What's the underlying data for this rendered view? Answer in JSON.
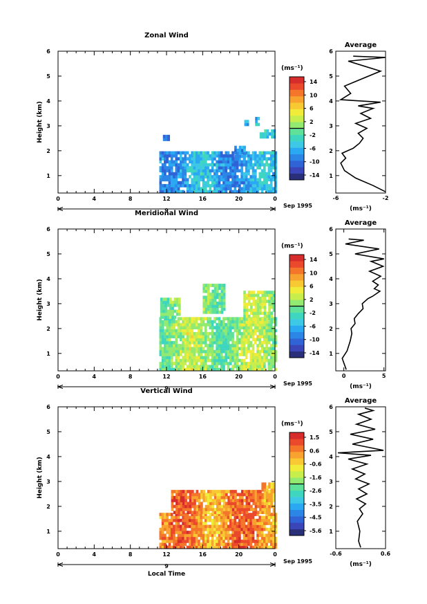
{
  "chart_data": [
    {
      "type": "heatmap",
      "title": "Zonal Wind",
      "ylabel": "Height (km)",
      "x_ticks": [
        "0",
        "4",
        "8",
        "12",
        "16",
        "20",
        "0"
      ],
      "y_ticks": [
        "1",
        "2",
        "3",
        "4",
        "5",
        "6"
      ],
      "date_day": "9",
      "date_month": "Sep 1995",
      "xlim": [
        0,
        24
      ],
      "ylim": [
        0.3,
        6
      ],
      "colorbar": {
        "unit": "(ms⁻¹)",
        "tick_labels": [
          "14",
          "10",
          "6",
          "2",
          "-2",
          "-6",
          "-10",
          "-14"
        ],
        "range": [
          -16,
          16
        ],
        "colors": [
          "#2a2f7a",
          "#3a46b8",
          "#2f63d6",
          "#2c86e6",
          "#2aa9f2",
          "#3dc8e6",
          "#3fd6c0",
          "#5fe19a",
          "#93ea70",
          "#c7ee4c",
          "#f1ec3a",
          "#f8c933",
          "#f8a22f",
          "#f3762b",
          "#ea4a2b",
          "#d72c2c"
        ]
      },
      "coverage": [
        {
          "x": [
            11.2,
            24.0
          ],
          "y": [
            0.3,
            1.9
          ]
        },
        {
          "x": [
            11.6,
            12.3
          ],
          "y": [
            2.4,
            2.6
          ]
        },
        {
          "x": [
            19.5,
            20.6
          ],
          "y": [
            1.6,
            2.2
          ]
        },
        {
          "x": [
            22.3,
            24.0
          ],
          "y": [
            2.5,
            2.8
          ]
        },
        {
          "x": [
            21.8,
            22.1
          ],
          "y": [
            3.0,
            3.3
          ]
        },
        {
          "x": [
            20.6,
            20.9
          ],
          "y": [
            3.0,
            3.2
          ]
        }
      ],
      "field_value_range": [
        -12,
        -2
      ],
      "profile": {
        "title": "Average",
        "xlabel": "(ms⁻¹)",
        "x_ticks": [
          "-6",
          "-2"
        ],
        "y_ticks": [
          "1",
          "2",
          "3",
          "4",
          "5",
          "6"
        ],
        "xlim": [
          -6,
          -2
        ],
        "ylim": [
          0.3,
          6
        ],
        "x": [
          -2.0,
          -3.0,
          -4.4,
          -5.3,
          -5.6,
          -5.2,
          -5.5,
          -4.6,
          -4.1,
          -3.8,
          -4.2,
          -3.5,
          -4.4,
          -3.2,
          -4.0,
          -3.0,
          -4.2,
          -2.4,
          -5.6,
          -4.8,
          -5.3,
          -2.4,
          -5.0,
          -2.0,
          -4.6
        ],
        "y": [
          0.35,
          0.6,
          0.9,
          1.2,
          1.5,
          1.7,
          1.9,
          2.1,
          2.3,
          2.5,
          2.7,
          2.9,
          3.1,
          3.3,
          3.5,
          3.7,
          3.8,
          3.95,
          4.05,
          4.3,
          4.6,
          5.2,
          5.6,
          5.75,
          5.8
        ]
      }
    },
    {
      "type": "heatmap",
      "title": "Meridional Wind",
      "ylabel": "Height (km)",
      "x_ticks": [
        "0",
        "4",
        "8",
        "12",
        "16",
        "20",
        "0"
      ],
      "y_ticks": [
        "1",
        "2",
        "3",
        "4",
        "5",
        "6"
      ],
      "date_day": "9",
      "date_month": "Sep 1995",
      "xlim": [
        0,
        24
      ],
      "ylim": [
        0.3,
        6
      ],
      "colorbar": {
        "unit": "(ms⁻¹)",
        "tick_labels": [
          "14",
          "10",
          "6",
          "2",
          "-2",
          "-6",
          "-10",
          "-14"
        ],
        "range": [
          -16,
          16
        ],
        "colors": [
          "#2a2f7a",
          "#3a46b8",
          "#2f63d6",
          "#2c86e6",
          "#2aa9f2",
          "#3dc8e6",
          "#3fd6c0",
          "#5fe19a",
          "#93ea70",
          "#c7ee4c",
          "#f1ec3a",
          "#f8c933",
          "#f8a22f",
          "#f3762b",
          "#ea4a2b",
          "#d72c2c"
        ]
      },
      "coverage": [
        {
          "x": [
            11.2,
            24.0
          ],
          "y": [
            0.3,
            2.4
          ]
        },
        {
          "x": [
            11.3,
            13.5
          ],
          "y": [
            2.4,
            3.2
          ]
        },
        {
          "x": [
            16.0,
            18.5
          ],
          "y": [
            2.6,
            3.8
          ]
        },
        {
          "x": [
            20.5,
            24.0
          ],
          "y": [
            2.2,
            3.5
          ]
        }
      ],
      "field_value_range": [
        -4,
        6
      ],
      "profile": {
        "title": "Average",
        "xlabel": "(ms⁻¹)",
        "x_ticks": [
          "0",
          "5"
        ],
        "y_ticks": [
          "1",
          "2",
          "3",
          "4",
          "5",
          "6"
        ],
        "xlim": [
          -1,
          5.2
        ],
        "ylim": [
          0.3,
          6
        ],
        "x": [
          0.3,
          -0.2,
          0.4,
          0.8,
          1.0,
          0.9,
          1.4,
          1.3,
          1.8,
          2.4,
          2.3,
          3.0,
          3.6,
          4.5,
          3.8,
          4.3,
          3.6,
          4.6,
          3.2,
          4.9,
          3.4,
          5.0,
          1.4,
          4.4,
          0.2,
          2.5,
          0.6
        ],
        "y": [
          0.35,
          0.8,
          1.1,
          1.5,
          1.8,
          2.0,
          2.2,
          2.4,
          2.6,
          2.8,
          3.0,
          3.2,
          3.3,
          3.5,
          3.6,
          3.75,
          3.9,
          4.1,
          4.3,
          4.5,
          4.7,
          4.8,
          5.0,
          5.2,
          5.4,
          5.55,
          5.6
        ]
      }
    },
    {
      "type": "heatmap",
      "title": "Vertical Wind",
      "ylabel": "Height (km)",
      "xlabel": "Local Time",
      "x_ticks": [
        "0",
        "4",
        "8",
        "12",
        "16",
        "20",
        "0"
      ],
      "y_ticks": [
        "1",
        "2",
        "3",
        "4",
        "5",
        "6"
      ],
      "date_day": "9",
      "date_month": "Sep 1995",
      "xlim": [
        0,
        24
      ],
      "ylim": [
        0.3,
        6
      ],
      "colorbar": {
        "unit": "(ms⁻¹)",
        "tick_labels": [
          "1.5",
          "0.6",
          "-0.6",
          "-1.6",
          "-2.6",
          "-3.5",
          "-4.5",
          "-5.6"
        ],
        "range": [
          -6.0,
          2.0
        ],
        "colors": [
          "#2a2f7a",
          "#3a46b8",
          "#2f63d6",
          "#2c86e6",
          "#2aa9f2",
          "#3dc8e6",
          "#3fd6c0",
          "#5fe19a",
          "#93ea70",
          "#c7ee4c",
          "#f1ec3a",
          "#f8c933",
          "#f8a22f",
          "#f3762b",
          "#ea4a2b",
          "#d72c2c"
        ]
      },
      "coverage": [
        {
          "x": [
            11.2,
            24.0
          ],
          "y": [
            0.3,
            1.7
          ]
        },
        {
          "x": [
            12.5,
            24.0
          ],
          "y": [
            1.7,
            2.6
          ]
        },
        {
          "x": [
            22.5,
            24.0
          ],
          "y": [
            2.6,
            2.85
          ]
        }
      ],
      "field_value_range": [
        -0.8,
        1.8
      ],
      "profile": {
        "title": "Average",
        "xlabel": "(ms⁻¹)",
        "x_ticks": [
          "-0.6",
          "0.6"
        ],
        "y_ticks": [
          "1",
          "2",
          "3",
          "4",
          "5",
          "6"
        ],
        "xlim": [
          -0.6,
          0.6
        ],
        "ylim": [
          0.3,
          6
        ],
        "x": [
          0.0,
          -0.05,
          -0.02,
          -0.08,
          0.05,
          -0.03,
          0.12,
          -0.1,
          0.15,
          -0.05,
          0.2,
          -0.12,
          0.1,
          -0.2,
          0.15,
          -0.3,
          0.25,
          -0.55,
          0.55,
          -0.2,
          0.3,
          -0.25,
          0.35,
          -0.1,
          0.25,
          -0.05,
          0.3,
          0.1
        ],
        "y": [
          0.35,
          0.6,
          1.0,
          1.4,
          1.7,
          1.9,
          2.1,
          2.3,
          2.5,
          2.7,
          2.9,
          3.1,
          3.3,
          3.5,
          3.7,
          3.9,
          4.05,
          4.15,
          4.25,
          4.5,
          4.7,
          4.9,
          5.1,
          5.3,
          5.5,
          5.7,
          5.85,
          5.95
        ]
      }
    }
  ]
}
